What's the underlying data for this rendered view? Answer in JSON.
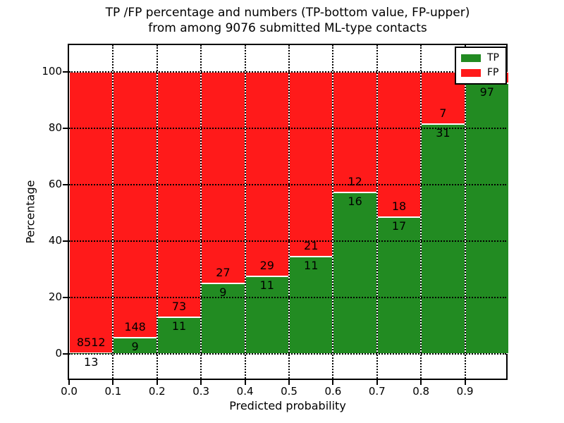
{
  "chart_data": {
    "type": "bar",
    "stacked": true,
    "title": [
      "TP /FP percentage and numbers (TP-bottom value, FP-upper)",
      "from among 9076 submitted ML-type contacts"
    ],
    "xlabel": "Predicted probability",
    "ylabel": "Percentage",
    "x_tick_labels": [
      "0.0",
      "0.1",
      "0.2",
      "0.3",
      "0.4",
      "0.5",
      "0.6",
      "0.7",
      "0.8",
      "0.9"
    ],
    "x_tick_values": [
      0,
      0.1,
      0.2,
      0.3,
      0.4,
      0.5,
      0.6,
      0.7,
      0.8,
      0.9
    ],
    "y_ticks": [
      0,
      20,
      40,
      60,
      80,
      100
    ],
    "xlim": [
      0,
      1
    ],
    "ylim": [
      -9.75,
      109.25
    ],
    "grid": "dotted",
    "colors": {
      "tp": "#228B22",
      "fp": "#FF1A1A"
    },
    "legend": {
      "position": "upper right",
      "entries": [
        {
          "label": "TP",
          "color": "#228B22"
        },
        {
          "label": "FP",
          "color": "#FF1A1A"
        }
      ]
    },
    "bars": [
      {
        "x0": 0.0,
        "x1": 0.1,
        "tp": 13,
        "fp": 8512,
        "tp_pct": 0.15
      },
      {
        "x0": 0.1,
        "x1": 0.2,
        "tp": 9,
        "fp": 148,
        "tp_pct": 5.73
      },
      {
        "x0": 0.2,
        "x1": 0.3,
        "tp": 11,
        "fp": 73,
        "tp_pct": 13.1
      },
      {
        "x0": 0.3,
        "x1": 0.4,
        "tp": 9,
        "fp": 27,
        "tp_pct": 25.0
      },
      {
        "x0": 0.4,
        "x1": 0.5,
        "tp": 11,
        "fp": 29,
        "tp_pct": 27.5
      },
      {
        "x0": 0.5,
        "x1": 0.6,
        "tp": 11,
        "fp": 21,
        "tp_pct": 34.38
      },
      {
        "x0": 0.6,
        "x1": 0.7,
        "tp": 16,
        "fp": 12,
        "tp_pct": 57.14
      },
      {
        "x0": 0.7,
        "x1": 0.8,
        "tp": 17,
        "fp": 18,
        "tp_pct": 48.57
      },
      {
        "x0": 0.8,
        "x1": 0.9,
        "tp": 31,
        "fp": 7,
        "tp_pct": 81.58
      },
      {
        "x0": 0.9,
        "x1": 1.0,
        "tp": 97,
        "fp": null,
        "tp_pct": 96.04
      }
    ]
  }
}
